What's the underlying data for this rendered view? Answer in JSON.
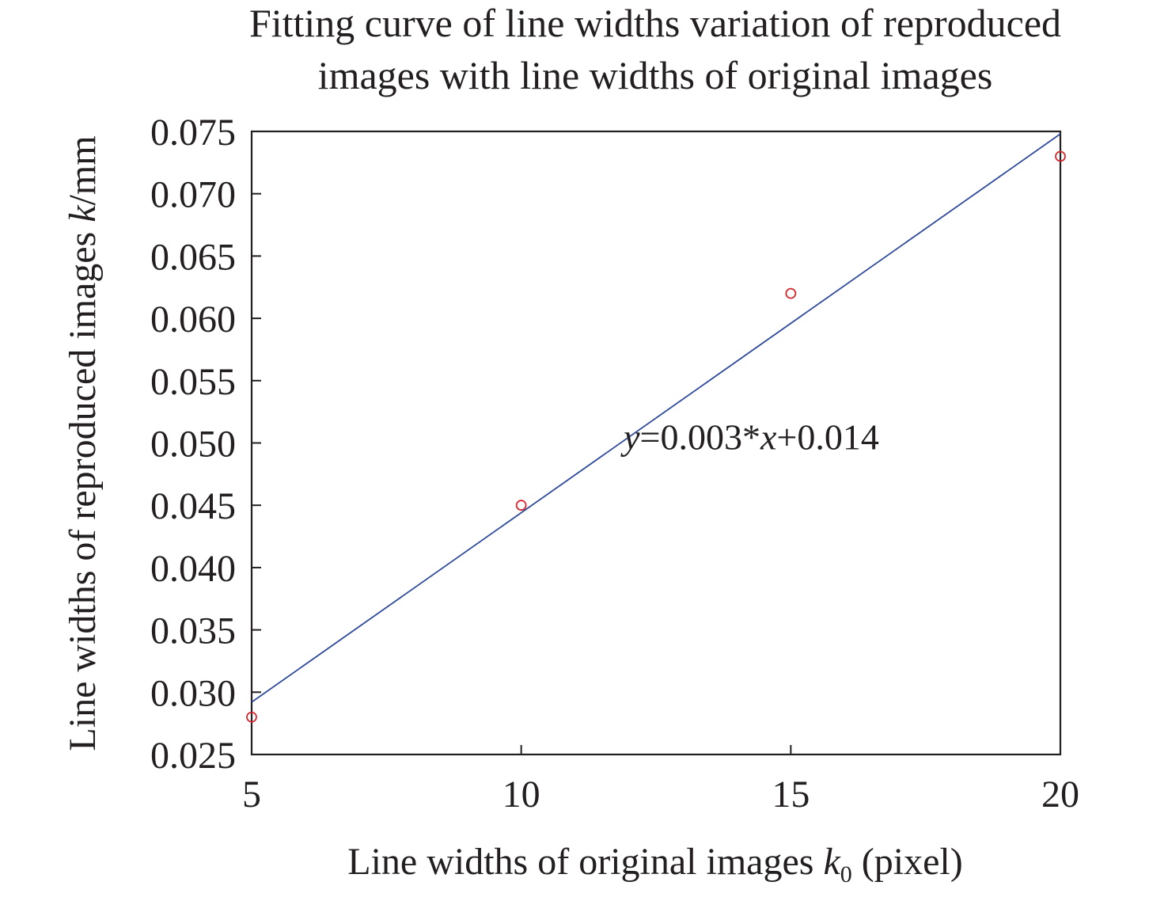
{
  "chart_data": {
    "type": "scatter",
    "title_lines": [
      "Fitting curve of line widths variation of reproduced",
      "images with line widths of original images"
    ],
    "xlabel": {
      "prefix": "Line widths of original images ",
      "var": "k",
      "sub": "0",
      "suffix": " (pixel)"
    },
    "ylabel": {
      "prefix": "Line widths of reproduced images ",
      "var": "k",
      "suffix": "/mm"
    },
    "xlim": [
      5,
      20
    ],
    "ylim": [
      0.025,
      0.075
    ],
    "x_ticks": [
      {
        "value": 5,
        "label": "5"
      },
      {
        "value": 10,
        "label": "10"
      },
      {
        "value": 15,
        "label": "15"
      },
      {
        "value": 20,
        "label": "20"
      }
    ],
    "y_ticks": [
      {
        "value": 0.025,
        "label": "0.025"
      },
      {
        "value": 0.03,
        "label": "0.030"
      },
      {
        "value": 0.035,
        "label": "0.035"
      },
      {
        "value": 0.04,
        "label": "0.040"
      },
      {
        "value": 0.045,
        "label": "0.045"
      },
      {
        "value": 0.05,
        "label": "0.050"
      },
      {
        "value": 0.055,
        "label": "0.055"
      },
      {
        "value": 0.06,
        "label": "0.060"
      },
      {
        "value": 0.065,
        "label": "0.065"
      },
      {
        "value": 0.07,
        "label": "0.070"
      },
      {
        "value": 0.075,
        "label": "0.075"
      }
    ],
    "grid": false,
    "series": [
      {
        "kind": "points",
        "color": "#d7282f",
        "x": [
          5,
          10,
          15,
          20
        ],
        "y": [
          0.028,
          0.045,
          0.062,
          0.073
        ]
      },
      {
        "kind": "fit_line",
        "color": "#2e4a9a",
        "x": [
          5,
          20
        ],
        "y": [
          0.0292,
          0.0748
        ]
      }
    ],
    "annotation": {
      "text_parts": [
        "y",
        "=0.003*",
        "x",
        "+0.014"
      ],
      "anchor": {
        "x": 11.9,
        "y": 0.0495
      }
    }
  }
}
